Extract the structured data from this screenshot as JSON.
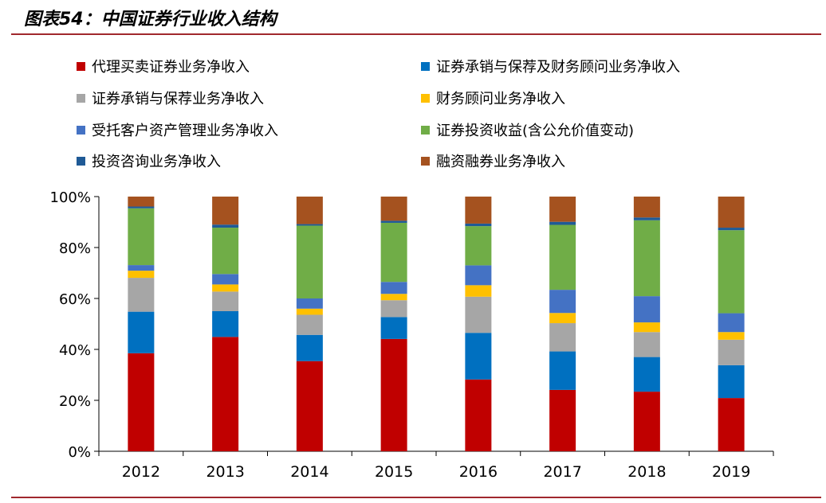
{
  "page": {
    "title": "图表54：中国证券行业收入结构"
  },
  "chart_data": {
    "type": "bar",
    "stacked": true,
    "normalized": true,
    "title": "",
    "xlabel": "",
    "ylabel": "",
    "ylim": [
      0,
      100
    ],
    "yticks": [
      "0%",
      "20%",
      "40%",
      "60%",
      "80%",
      "100%"
    ],
    "categories": [
      "2012",
      "2013",
      "2014",
      "2015",
      "2016",
      "2017",
      "2018",
      "2019"
    ],
    "grid": false,
    "legend_position": "top",
    "series": [
      {
        "name": "代理买卖证券业务净收入",
        "color": "#c00000",
        "values": [
          38.5,
          44.9,
          35.4,
          44.1,
          28.2,
          24.1,
          23.4,
          20.9
        ]
      },
      {
        "name": "证券承销与保荐及财务顾问业务净收入",
        "color": "#0070c0",
        "values": [
          16.3,
          10.1,
          10.3,
          8.6,
          18.3,
          15.1,
          13.6,
          12.9
        ]
      },
      {
        "name": "证券承销与保荐业务净收入",
        "color": "#a6a6a6",
        "values": [
          13.3,
          7.7,
          7.9,
          6.6,
          14.2,
          11.1,
          9.8,
          10.0
        ]
      },
      {
        "name": "财务顾问业务净收入",
        "color": "#ffc000",
        "values": [
          2.8,
          2.8,
          2.4,
          2.5,
          4.5,
          4.0,
          3.8,
          3.0
        ]
      },
      {
        "name": "受托客户资产管理业务净收入",
        "color": "#4472c4",
        "values": [
          2.2,
          4.1,
          4.0,
          4.7,
          7.8,
          9.1,
          10.3,
          7.4
        ]
      },
      {
        "name": "证券投资收益(含公允价值变动)",
        "color": "#70ad47",
        "values": [
          22.3,
          18.2,
          28.6,
          23.2,
          15.4,
          25.5,
          29.8,
          32.6
        ]
      },
      {
        "name": "投资咨询业务净收入",
        "color": "#1f5a96",
        "values": [
          0.7,
          1.2,
          0.6,
          0.8,
          1.0,
          1.2,
          1.1,
          1.0
        ]
      },
      {
        "name": "融资融券业务净收入",
        "color": "#a5521f",
        "values": [
          3.9,
          11.0,
          10.8,
          9.5,
          10.6,
          9.9,
          8.2,
          12.2
        ]
      }
    ]
  }
}
